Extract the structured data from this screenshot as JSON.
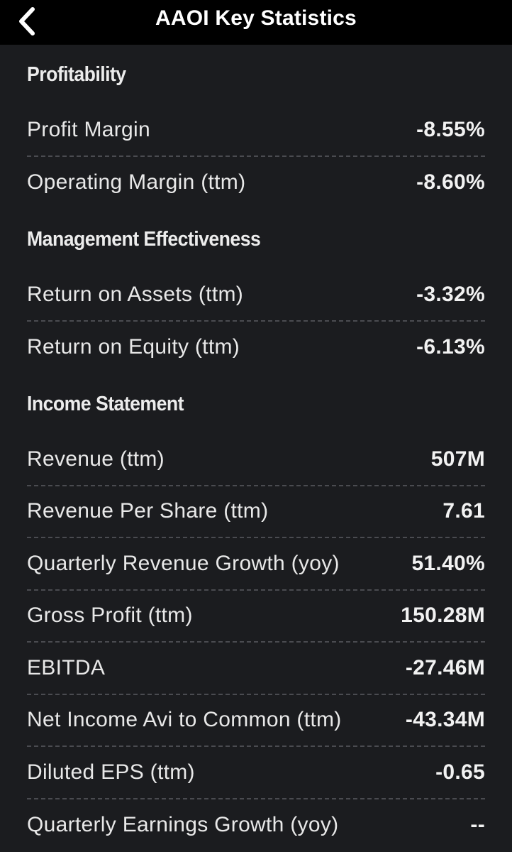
{
  "nav": {
    "title": "AAOI Key Statistics",
    "back_icon": "chevron-left-icon"
  },
  "sections": [
    {
      "title": "Profitability",
      "rows": [
        {
          "label": "Profit Margin",
          "value": "-8.55%"
        },
        {
          "label": "Operating Margin (ttm)",
          "value": "-8.60%"
        }
      ]
    },
    {
      "title": "Management Effectiveness",
      "rows": [
        {
          "label": "Return on Assets (ttm)",
          "value": "-3.32%"
        },
        {
          "label": "Return on Equity (ttm)",
          "value": "-6.13%"
        }
      ]
    },
    {
      "title": "Income Statement",
      "rows": [
        {
          "label": "Revenue (ttm)",
          "value": "507M"
        },
        {
          "label": "Revenue Per Share (ttm)",
          "value": "7.61"
        },
        {
          "label": "Quarterly Revenue Growth (yoy)",
          "value": "51.40%"
        },
        {
          "label": "Gross Profit (ttm)",
          "value": "150.28M"
        },
        {
          "label": "EBITDA",
          "value": "-27.46M"
        },
        {
          "label": "Net Income Avi to Common (ttm)",
          "value": "-43.34M"
        },
        {
          "label": "Diluted EPS (ttm)",
          "value": "-0.65"
        },
        {
          "label": "Quarterly Earnings Growth (yoy)",
          "value": "--"
        }
      ]
    }
  ],
  "colors": {
    "background": "#1b1c1f",
    "nav_background": "#000000",
    "divider": "#4a4b50",
    "text": "#e8e8e8"
  }
}
